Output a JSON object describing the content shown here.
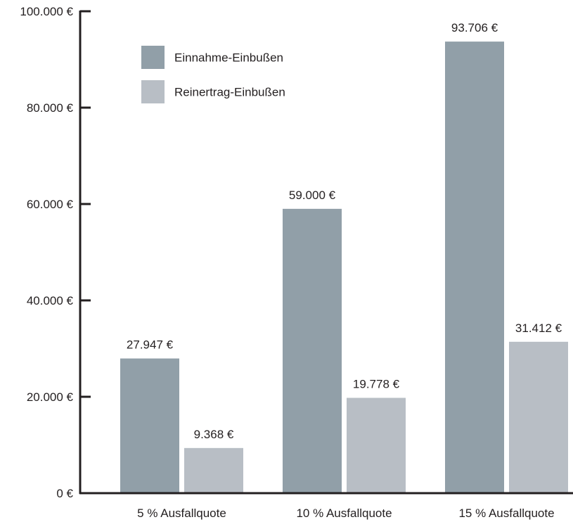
{
  "chart_data": {
    "type": "bar",
    "categories": [
      "5 % Ausfallquote",
      "10 % Ausfallquote",
      "15 % Ausfallquote"
    ],
    "series": [
      {
        "name": "Einnahme-Einbußen",
        "color": "#919fa8",
        "values": [
          27947,
          59000,
          93706
        ],
        "labels": [
          "27.947 €",
          "59.000 €",
          "93.706 €"
        ]
      },
      {
        "name": "Reinertrag-Einbußen",
        "color": "#b8bec5",
        "values": [
          9368,
          19778,
          31412
        ],
        "labels": [
          "9.368 €",
          "19.778 €",
          "31.412 €"
        ]
      }
    ],
    "ylim": [
      0,
      100000
    ],
    "yticks": [
      0,
      20000,
      40000,
      60000,
      80000,
      100000
    ],
    "ytick_labels": [
      "0 €",
      "20.000 €",
      "40.000 €",
      "60.000 €",
      "80.000 €",
      "100.000 €"
    ],
    "legend_position": "top-left",
    "grid": false,
    "axis_color": "#231f20"
  }
}
